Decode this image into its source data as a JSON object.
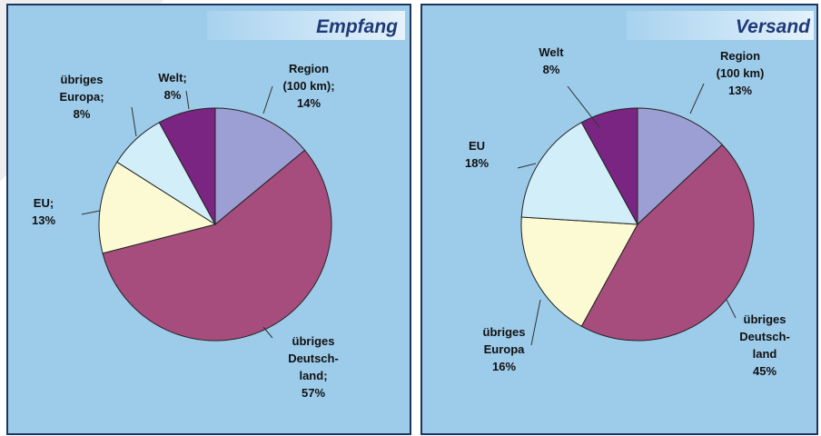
{
  "chart_data": [
    {
      "type": "pie",
      "title": "Empfang",
      "categories": [
        [
          "Region",
          "(100 km);"
        ],
        [
          "übriges",
          "Deutsch-",
          "land;"
        ],
        [
          "EU;"
        ],
        [
          "übriges",
          "Europa;"
        ],
        [
          "Welt;"
        ]
      ],
      "values": [
        14,
        57,
        13,
        8,
        8
      ],
      "value_labels": [
        "14%",
        "57%",
        "13%",
        "8%",
        "8%"
      ],
      "colors": [
        "#9c9fd3",
        "#a74d7d",
        "#fcfad2",
        "#d2eef9",
        "#7a2582"
      ]
    },
    {
      "type": "pie",
      "title": "Versand",
      "categories": [
        [
          "Region",
          "(100 km)"
        ],
        [
          "übriges",
          "Deutsch-",
          "land"
        ],
        [
          "EU"
        ],
        [
          "übriges",
          "Europa"
        ],
        [
          "Welt"
        ]
      ],
      "values": [
        13,
        45,
        18,
        16,
        8
      ],
      "value_labels": [
        "13%",
        "45%",
        "18%",
        "16%",
        "8%"
      ],
      "colors": [
        "#9c9fd3",
        "#a74d7d",
        "#fcfad2",
        "#d2eef9",
        "#7a2582"
      ]
    }
  ]
}
